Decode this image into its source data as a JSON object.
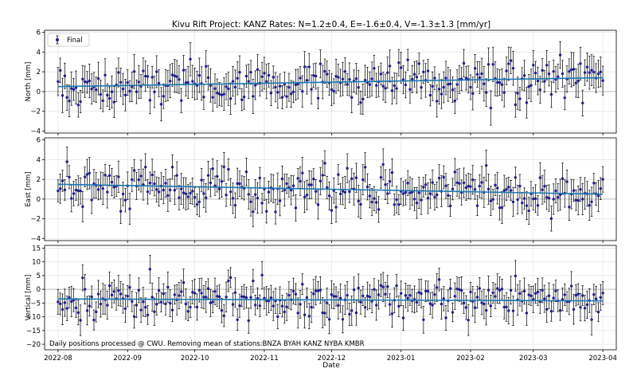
{
  "title": "Kivu Rift Project: KANZ  Rates: N=1.2±0.4, E=-1.6±0.4, V=-1.3±1.3 [mm/yr]",
  "footnote": "Daily positions processed @ CWU. Removing mean of stations:BNZA BYAH KANZ NYBA KMBR",
  "colors": {
    "points": "#1f1f8f",
    "errorbar": "#000000",
    "trend": "#1f77b4",
    "zeroline": "#bdbdbd",
    "grid": "#e6e6e6"
  },
  "chart_data": {
    "type": "scatter",
    "xlabel": "Date",
    "x_range": [
      "2022-07-26",
      "2023-04-07"
    ],
    "x_ticks": [
      "2022-08-01",
      "2022-09-01",
      "2022-10-01",
      "2022-11-01",
      "2022-12-01",
      "2023-01-01",
      "2023-02-01",
      "2023-03-01",
      "2023-04-01"
    ],
    "x_tick_labels": [
      "2022-08",
      "2022-09",
      "2022-10",
      "2022-11",
      "2022-12",
      "2023-01",
      "2023-02",
      "2023-03",
      "2023-04"
    ],
    "series_start": "2022-08-01",
    "series_end": "2023-04-01",
    "grid": true,
    "legend": {
      "position": "top-left",
      "entries": [
        "Final"
      ]
    },
    "panels": [
      {
        "name": "north",
        "ylabel": "North [mm]",
        "ylim": [
          -4.2,
          6.2
        ],
        "yticks": [
          -4,
          -2,
          0,
          2,
          4,
          6
        ],
        "trend": {
          "start": 0.5,
          "end": 1.4
        },
        "scatter_std": 1.0,
        "error_std": 1.4,
        "annotation": ""
      },
      {
        "name": "east",
        "ylabel": "East [mm]",
        "ylim": [
          -4.2,
          6.2
        ],
        "yticks": [
          -4,
          -2,
          0,
          2,
          4,
          6
        ],
        "trend": {
          "start": 1.5,
          "end": 0.5
        },
        "scatter_std": 1.0,
        "error_std": 1.3,
        "annotation": ""
      },
      {
        "name": "vertical",
        "ylabel": "Vertical [mm]",
        "ylim": [
          -22,
          16
        ],
        "yticks": [
          -20,
          -15,
          -10,
          -5,
          0,
          5,
          10,
          15
        ],
        "trend": {
          "start": -3.5,
          "end": -4.2
        },
        "scatter_std": 3.5,
        "error_std": 4.5,
        "annotation": "Daily positions processed @ CWU. Removing mean of stations:BNZA BYAH KANZ NYBA KMBR"
      }
    ]
  }
}
